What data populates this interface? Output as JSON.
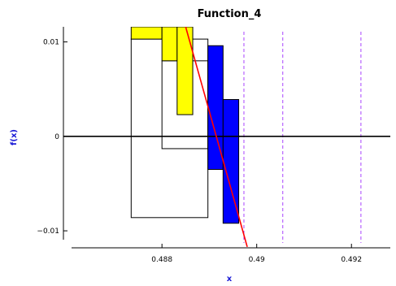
{
  "chart_data": {
    "type": "bar",
    "title": "Function_4",
    "xlabel": "x",
    "ylabel": "f(x)",
    "xlim": [
      0.48592,
      0.49282
    ],
    "ylim": [
      -0.0118,
      0.0116
    ],
    "x_ticks": [
      0.488,
      0.49,
      0.492
    ],
    "x_tick_labels": [
      "0.488",
      "0.49",
      "0.492"
    ],
    "y_ticks": [
      -0.01,
      0,
      0.01
    ],
    "y_tick_labels": [
      "−0.01",
      "0",
      "0.01"
    ],
    "grid": false,
    "legend": "none",
    "outline_boxes": [
      {
        "x0": 0.48735,
        "x1": 0.48897,
        "y0": -0.0086,
        "y1": 0.0103
      },
      {
        "x0": 0.488,
        "x1": 0.48897,
        "y0": -0.0013,
        "y1": 0.008
      }
    ],
    "yellow_boxes": [
      {
        "x0": 0.48735,
        "x1": 0.488,
        "y0": 0.0103,
        "y1": 0.0116
      },
      {
        "x0": 0.488,
        "x1": 0.48832,
        "y0": 0.008,
        "y1": 0.0116
      },
      {
        "x0": 0.48832,
        "x1": 0.48865,
        "y0": 0.0023,
        "y1": 0.0116
      }
    ],
    "blue_boxes": [
      {
        "x0": 0.48897,
        "x1": 0.48929,
        "y0": -0.0035,
        "y1": 0.0096
      },
      {
        "x0": 0.48929,
        "x1": 0.48962,
        "y0": -0.0092,
        "y1": 0.0039
      }
    ],
    "function_line": {
      "x": [
        0.4885,
        0.4898
      ],
      "y": [
        0.0116,
        -0.0117
      ]
    },
    "dashed_vlines": [
      0.48973,
      0.49055,
      0.4922
    ],
    "zero_line": 0,
    "colors": {
      "yellow": "#ffff00",
      "blue": "#0000ff",
      "function": "#ff0000",
      "dashed": "#aa44ff",
      "axis_title": "#1a1ad6"
    }
  }
}
